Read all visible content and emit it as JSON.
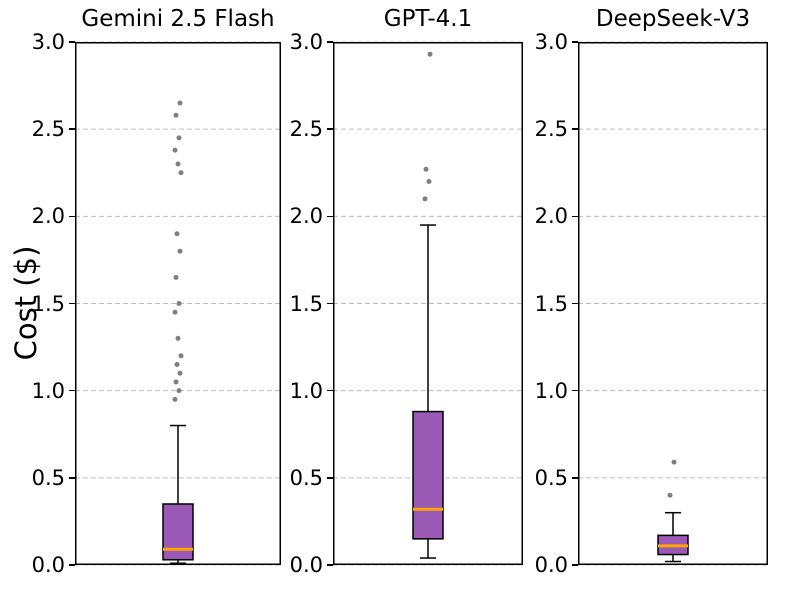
{
  "chart_data": {
    "type": "boxplot",
    "ylabel": "Cost ($)",
    "ylim": [
      0.0,
      3.0
    ],
    "yticks": [
      0.0,
      0.5,
      1.0,
      1.5,
      2.0,
      2.5,
      3.0
    ],
    "grid": "horizontal-dashed",
    "grid_color": "#bdbdbd",
    "box_color": "#9b59b6",
    "median_color": "#ffa500",
    "outlier_color": "#7f7f7f",
    "panels": [
      {
        "title": "Gemini 2.5 Flash",
        "whisker_low": 0.01,
        "q1": 0.03,
        "median": 0.09,
        "q3": 0.35,
        "whisker_high": 0.8,
        "outliers": [
          0.95,
          1.0,
          1.05,
          1.1,
          1.15,
          1.2,
          1.3,
          1.45,
          1.5,
          1.65,
          1.8,
          1.9,
          2.25,
          2.3,
          2.38,
          2.45,
          2.58,
          2.65
        ]
      },
      {
        "title": "GPT-4.1",
        "whisker_low": 0.04,
        "q1": 0.15,
        "median": 0.32,
        "q3": 0.88,
        "whisker_high": 1.95,
        "outliers": [
          2.1,
          2.2,
          2.27,
          2.93
        ]
      },
      {
        "title": "DeepSeek-V3",
        "whisker_low": 0.02,
        "q1": 0.06,
        "median": 0.11,
        "q3": 0.17,
        "whisker_high": 0.3,
        "outliers": [
          0.4,
          0.59
        ]
      }
    ]
  }
}
